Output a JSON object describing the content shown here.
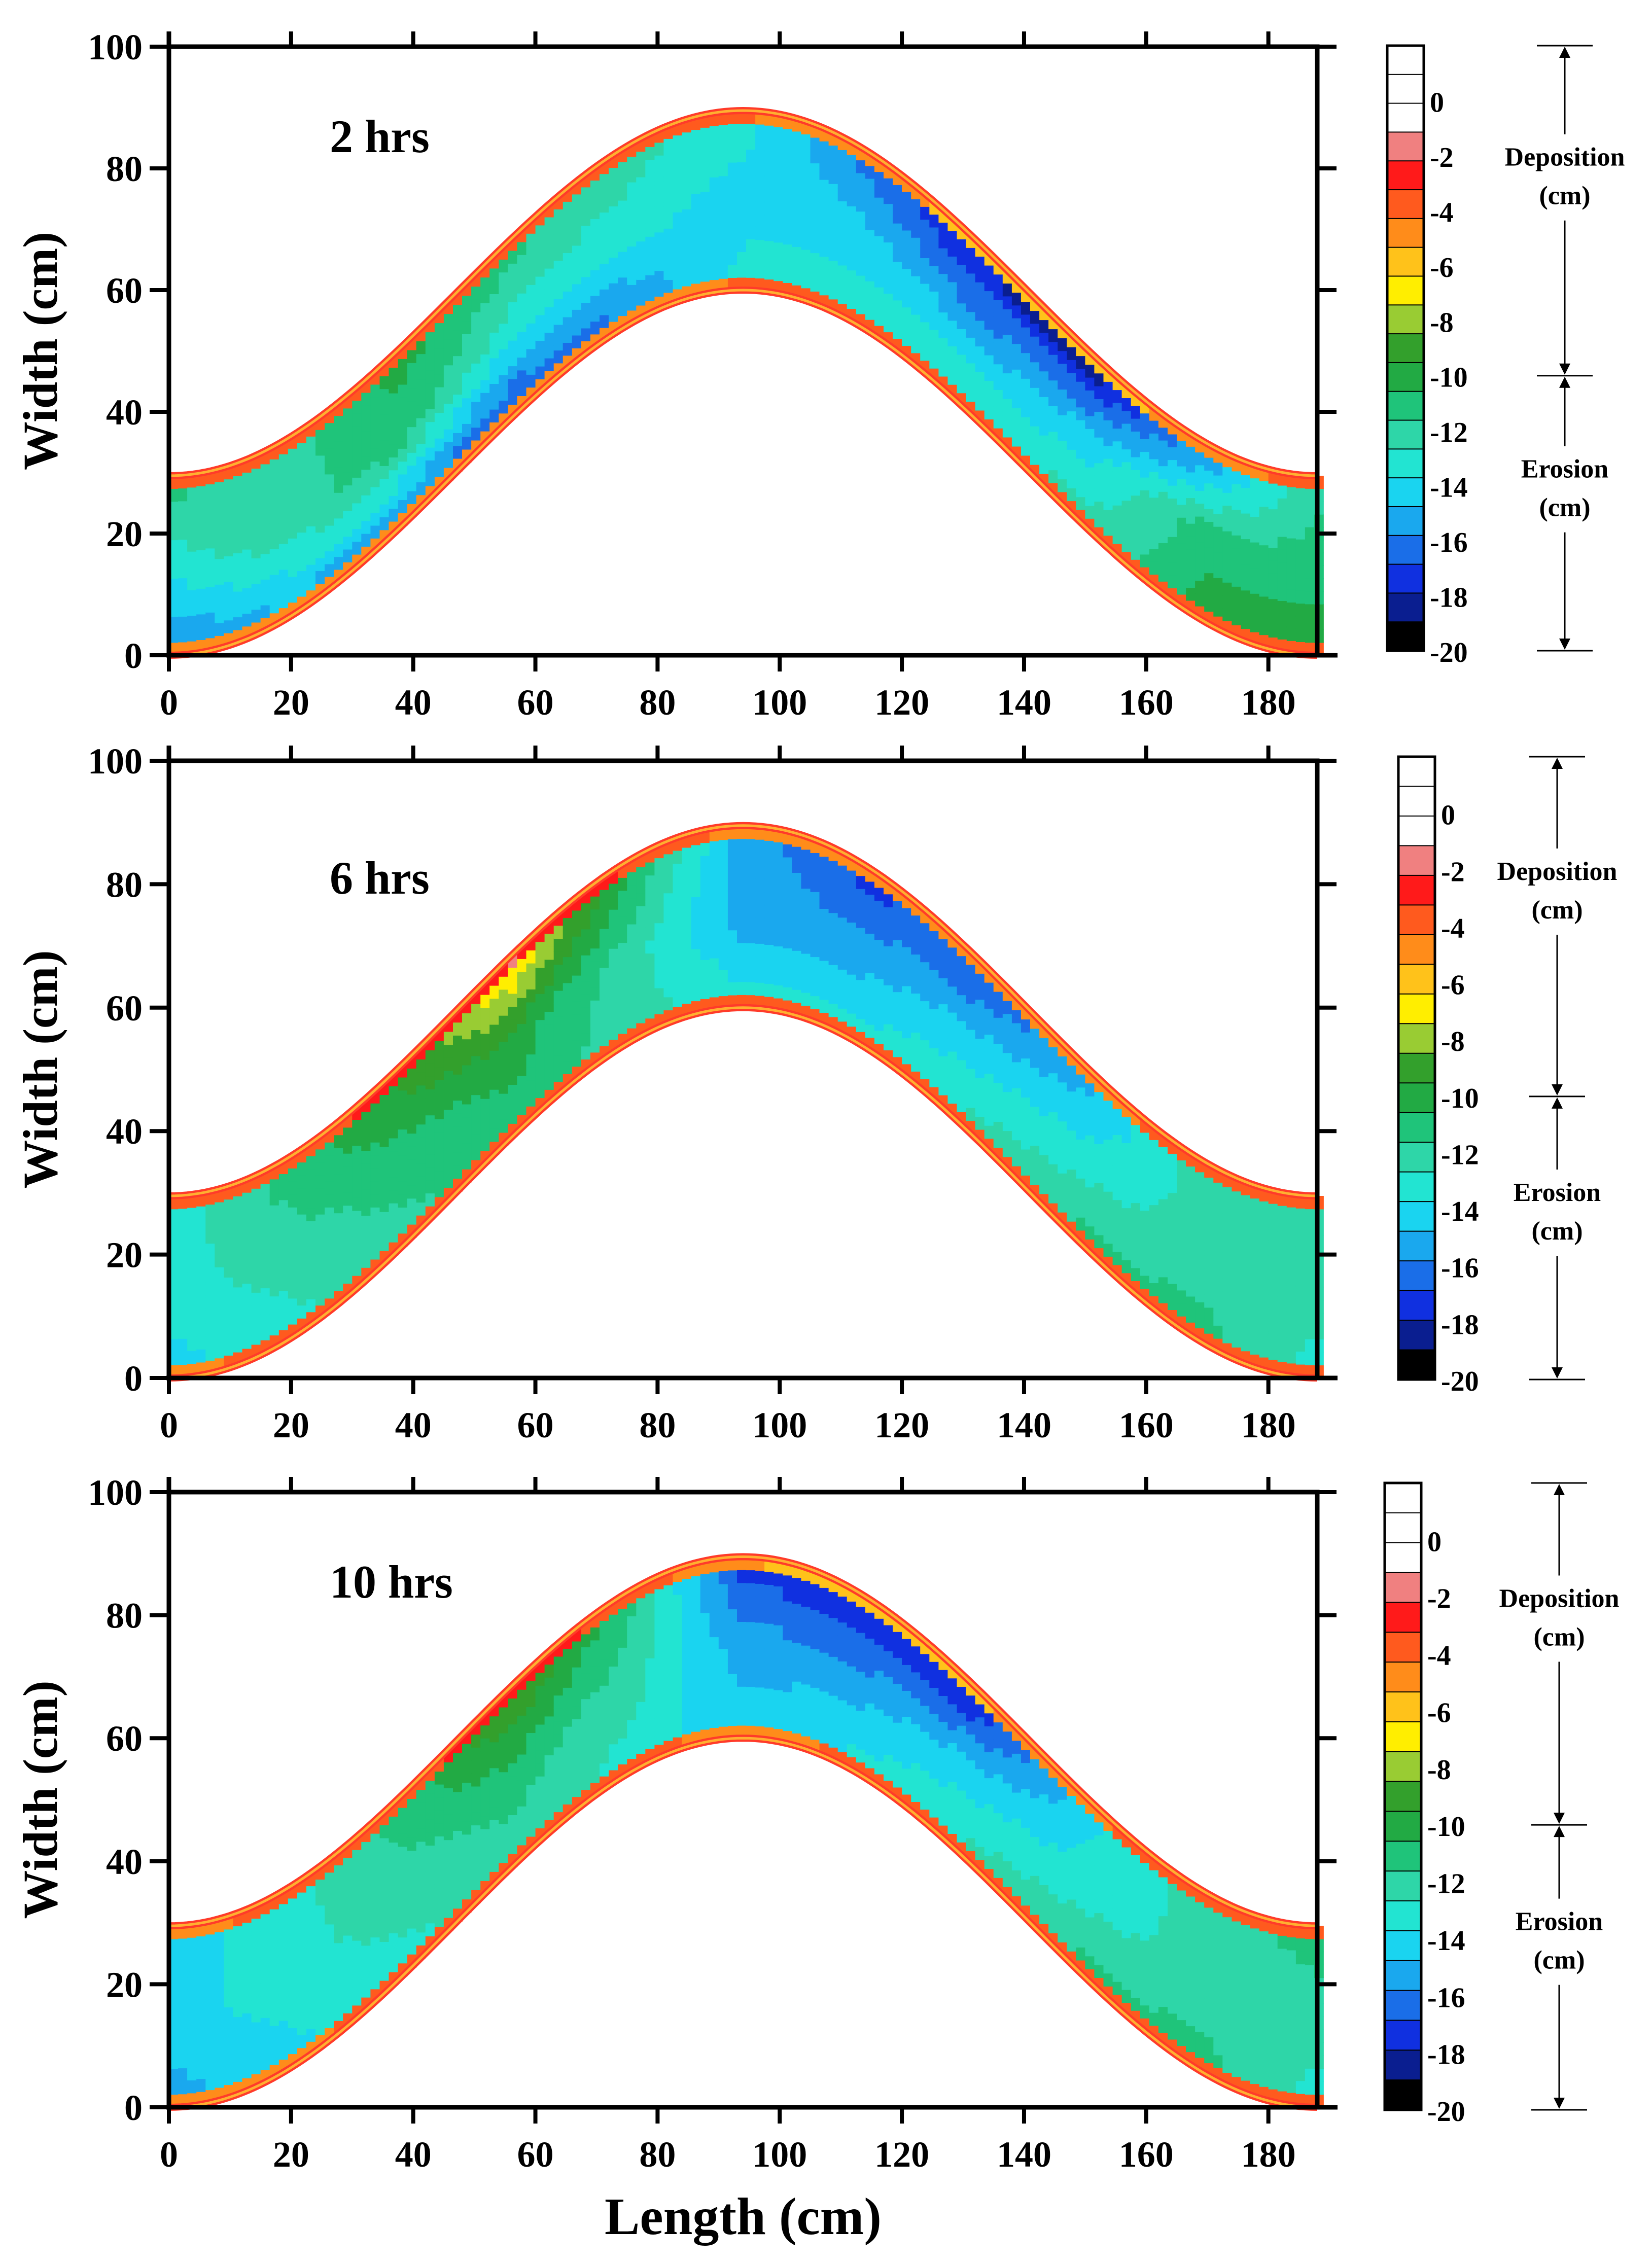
{
  "chart_data": [
    {
      "type": "heatmap",
      "title": "2 hrs",
      "xlabel": "",
      "ylabel": "Width (cm)",
      "xlim": [
        0,
        188
      ],
      "ylim": [
        0,
        100
      ],
      "x_ticks": [
        0,
        20,
        40,
        60,
        80,
        100,
        120,
        140,
        160,
        180
      ],
      "y_ticks": [
        0,
        20,
        40,
        60,
        80,
        100
      ],
      "channel": {
        "base_y": 0,
        "amplitude": 60,
        "width": 29.5
      },
      "depth_profile": {
        "s": [
          0,
          10,
          20,
          30,
          40,
          50,
          60,
          70,
          80,
          90,
          100
        ],
        "outer": [
          -10,
          -11,
          -9,
          -10,
          -11,
          -12,
          -15,
          -17,
          -18,
          -15,
          -11
        ],
        "center": [
          -12,
          -11,
          -10,
          -12,
          -12,
          -13,
          -13,
          -14,
          -13,
          -10,
          -10
        ],
        "inner": [
          -15,
          -14,
          -15,
          -16,
          -15,
          -12,
          -12,
          -11,
          -11,
          -9,
          -9
        ]
      }
    },
    {
      "type": "heatmap",
      "title": "6 hrs",
      "xlabel": "",
      "ylabel": "Width (cm)",
      "xlim": [
        0,
        188
      ],
      "ylim": [
        0,
        100
      ],
      "x_ticks": [
        0,
        20,
        40,
        60,
        80,
        100,
        120,
        140,
        160,
        180
      ],
      "y_ticks": [
        0,
        20,
        40,
        60,
        80,
        100
      ],
      "channel": {
        "base_y": 0,
        "amplitude": 60,
        "width": 29.5
      },
      "depth_profile": {
        "s": [
          0,
          10,
          20,
          30,
          40,
          50,
          60,
          70,
          80,
          90,
          100
        ],
        "outer": [
          -12,
          -10,
          -8,
          -5,
          -9,
          -14,
          -16,
          -16,
          -14,
          -11,
          -11
        ],
        "center": [
          -12,
          -11,
          -10,
          -9,
          -11,
          -14,
          -14,
          -13,
          -12,
          -11,
          -11
        ],
        "inner": [
          -13,
          -12,
          -11,
          -10,
          -11,
          -12,
          -12,
          -11,
          -10,
          -10,
          -12
        ]
      }
    },
    {
      "type": "heatmap",
      "title": "10 hrs",
      "xlabel": "Length (cm)",
      "ylabel": "Width (cm)",
      "xlim": [
        0,
        188
      ],
      "ylim": [
        0,
        100
      ],
      "x_ticks": [
        0,
        20,
        40,
        60,
        80,
        100,
        120,
        140,
        160,
        180
      ],
      "y_ticks": [
        0,
        20,
        40,
        60,
        80,
        100
      ],
      "channel": {
        "base_y": 0,
        "amplitude": 60,
        "width": 29.5
      },
      "depth_profile": {
        "s": [
          0,
          10,
          20,
          30,
          40,
          50,
          60,
          70,
          80,
          90,
          100
        ],
        "outer": [
          -13,
          -12,
          -10,
          -7,
          -10,
          -16,
          -17,
          -17,
          -13,
          -11,
          -10
        ],
        "center": [
          -13,
          -12,
          -11,
          -10,
          -11,
          -14,
          -14,
          -13,
          -12,
          -11,
          -11
        ],
        "inner": [
          -14,
          -13,
          -12,
          -11,
          -12,
          -13,
          -12,
          -11,
          -10,
          -10,
          -12
        ]
      }
    }
  ],
  "colorbar": {
    "levels": [
      {
        "value": 2,
        "color": "#ffffff"
      },
      {
        "value": 1,
        "color": "#ffffff"
      },
      {
        "value": 0,
        "color": "#ffffff"
      },
      {
        "value": -1,
        "color": "#f08080"
      },
      {
        "value": -2,
        "color": "#ff1a1a"
      },
      {
        "value": -3,
        "color": "#ff5a1e"
      },
      {
        "value": -4,
        "color": "#ff8c1a"
      },
      {
        "value": -5,
        "color": "#ffc21a"
      },
      {
        "value": -6,
        "color": "#ffee00"
      },
      {
        "value": -7,
        "color": "#99cc33"
      },
      {
        "value": -8,
        "color": "#33a02c"
      },
      {
        "value": -9,
        "color": "#22aa44"
      },
      {
        "value": -10,
        "color": "#1fc47a"
      },
      {
        "value": -11,
        "color": "#2ed6a8"
      },
      {
        "value": -12,
        "color": "#22e4d2"
      },
      {
        "value": -13,
        "color": "#1ad4f0"
      },
      {
        "value": -14,
        "color": "#1aa8ee"
      },
      {
        "value": -15,
        "color": "#1a6ee8"
      },
      {
        "value": -16,
        "color": "#1030e0"
      },
      {
        "value": -17,
        "color": "#0a1e90"
      },
      {
        "value": -18,
        "color": "#000000"
      }
    ],
    "tick_labels": [
      "0",
      "-2",
      "-4",
      "-6",
      "-8",
      "-10",
      "-12",
      "-14",
      "-16",
      "-18",
      "-20"
    ],
    "tick_values": [
      0,
      -2,
      -4,
      -6,
      -8,
      -10,
      -12,
      -14,
      -16,
      -18,
      -20
    ],
    "deposition_label": "Deposition",
    "erosion_label": "Erosion",
    "unit_label": "(cm)"
  }
}
